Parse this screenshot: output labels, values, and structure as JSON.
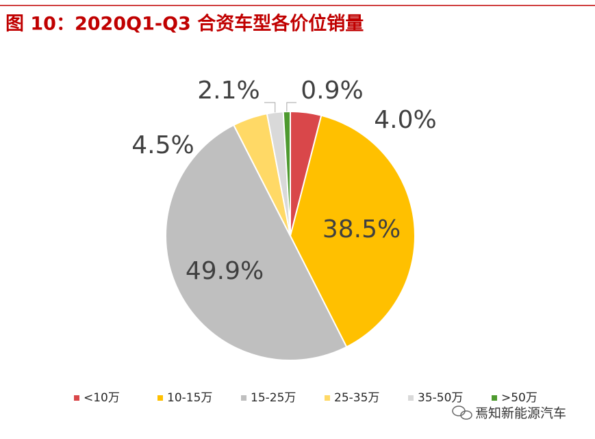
{
  "chart_data": {
    "type": "pie",
    "title": "图 10：2020Q1-Q3 合资车型各价位销量",
    "categories": [
      "<10万",
      "10-15万",
      "15-25万",
      "25-35万",
      "35-50万",
      ">50万"
    ],
    "values": [
      4.0,
      38.5,
      49.9,
      4.5,
      2.1,
      0.9
    ],
    "value_labels": [
      "4.0%",
      "38.5%",
      "49.9%",
      "4.5%",
      "2.1%",
      "0.9%"
    ],
    "colors": [
      "#D9474A",
      "#FFC000",
      "#BFBFBF",
      "#FFD966",
      "#D9D9D9",
      "#4E9A2F"
    ],
    "legend": "bottom"
  },
  "watermark": "焉知新能源汽车"
}
